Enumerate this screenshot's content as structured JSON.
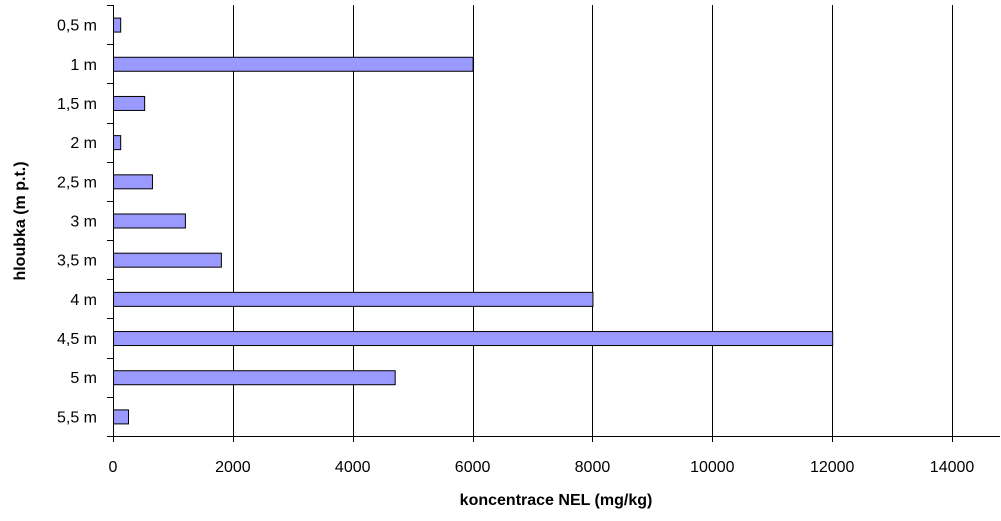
{
  "chart_data": {
    "type": "bar",
    "orientation": "horizontal",
    "title": "",
    "xlabel": "koncentrace NEL (mg/kg)",
    "ylabel": "hloubka (m p.t.)",
    "categories": [
      "0,5 m",
      "1 m",
      "1,5 m",
      "2 m",
      "2,5 m",
      "3 m",
      "3,5 m",
      "4 m",
      "4,5 m",
      "5 m",
      "5,5 m"
    ],
    "values": [
      120,
      6000,
      520,
      120,
      650,
      1200,
      1800,
      8000,
      12000,
      4700,
      250
    ],
    "xlim": [
      0,
      14800
    ],
    "xticks": [
      0,
      2000,
      4000,
      6000,
      8000,
      10000,
      12000,
      14000
    ],
    "xtick_labels": [
      "0",
      "2000",
      "4000",
      "6000",
      "8000",
      "10000",
      "12000",
      "14000"
    ],
    "grid": true,
    "legend": "none",
    "bar_color": "#9999ff",
    "bar_edge_color": "#000000"
  }
}
